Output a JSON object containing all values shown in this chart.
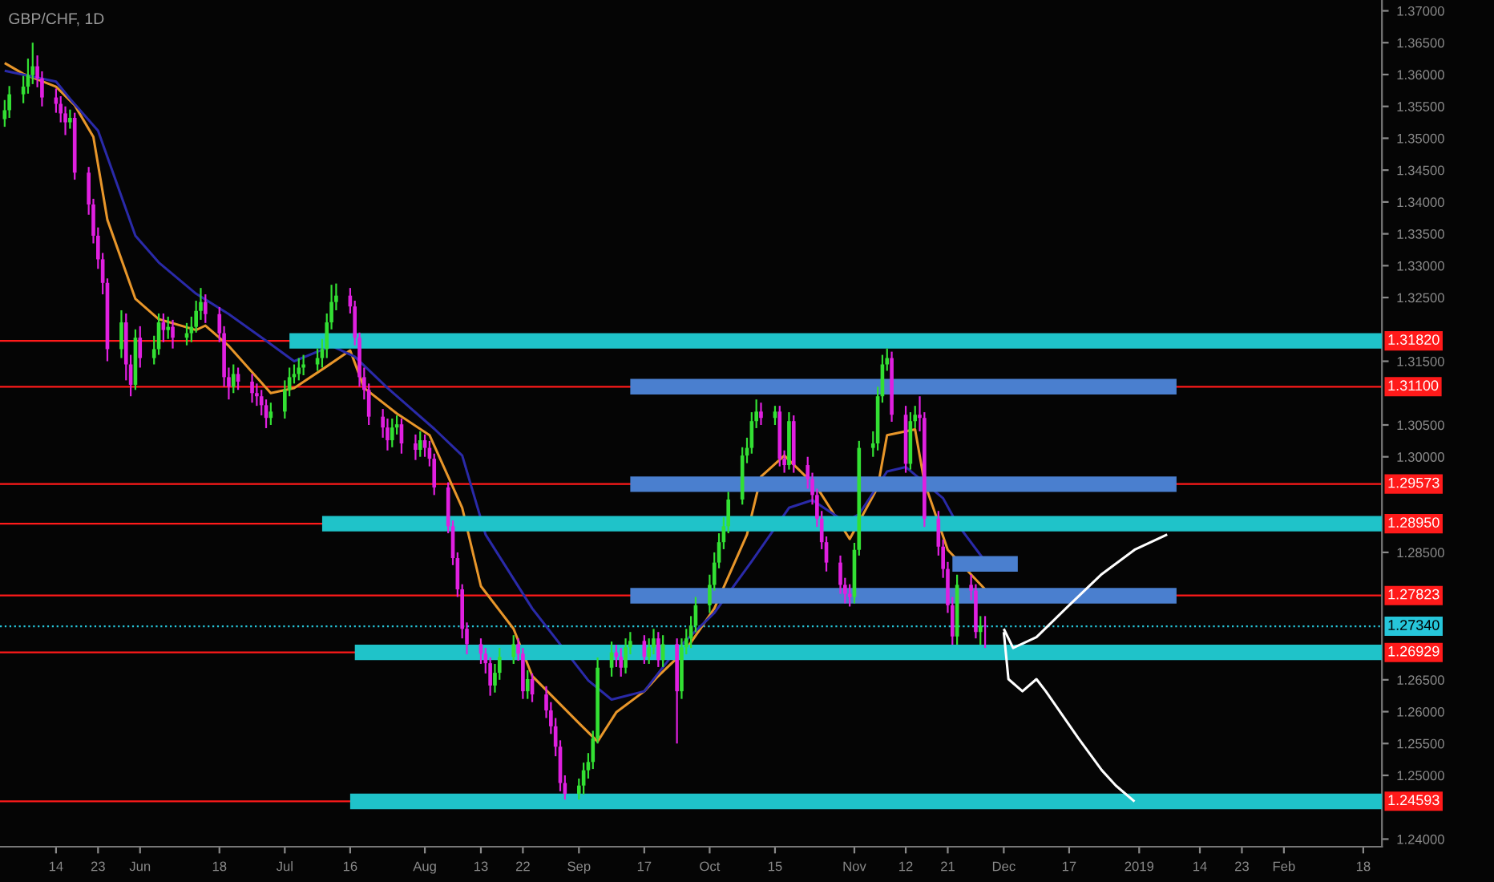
{
  "chart_data": {
    "type": "candlestick",
    "title": "GBP/CHF, 1D",
    "xlim": [
      "2018-05-02",
      "2019-02-22"
    ],
    "xticks": [
      {
        "value": "2018-05-14",
        "label": "14"
      },
      {
        "value": "2018-05-23",
        "label": "23"
      },
      {
        "value": "2018-06-01",
        "label": "Jun"
      },
      {
        "value": "2018-06-18",
        "label": "18"
      },
      {
        "value": "2018-07-02",
        "label": "Jul"
      },
      {
        "value": "2018-07-16",
        "label": "16"
      },
      {
        "value": "2018-08-01",
        "label": "Aug"
      },
      {
        "value": "2018-08-13",
        "label": "13"
      },
      {
        "value": "2018-08-22",
        "label": "22"
      },
      {
        "value": "2018-09-03",
        "label": "Sep"
      },
      {
        "value": "2018-09-17",
        "label": "17"
      },
      {
        "value": "2018-10-01",
        "label": "Oct"
      },
      {
        "value": "2018-10-15",
        "label": "15"
      },
      {
        "value": "2018-11-01",
        "label": "Nov"
      },
      {
        "value": "2018-11-12",
        "label": "12"
      },
      {
        "value": "2018-11-21",
        "label": "21"
      },
      {
        "value": "2018-12-03",
        "label": "Dec"
      },
      {
        "value": "2018-12-17",
        "label": "17"
      },
      {
        "value": "2019-01-01",
        "label": "2019"
      },
      {
        "value": "2019-01-14",
        "label": "14"
      },
      {
        "value": "2019-01-23",
        "label": "23"
      },
      {
        "value": "2019-02-01",
        "label": "Feb"
      },
      {
        "value": "2019-02-18",
        "label": "18"
      }
    ],
    "ylim": [
      1.2388,
      1.3717
    ],
    "yticks": [
      {
        "value": 1.24,
        "label": "1.24000"
      },
      {
        "value": 1.25,
        "label": "1.25000"
      },
      {
        "value": 1.255,
        "label": "1.25500"
      },
      {
        "value": 1.26,
        "label": "1.26000"
      },
      {
        "value": 1.265,
        "label": "1.26500"
      },
      {
        "value": 1.285,
        "label": "1.28500"
      },
      {
        "value": 1.3,
        "label": "1.30000"
      },
      {
        "value": 1.305,
        "label": "1.30500"
      },
      {
        "value": 1.315,
        "label": "1.31500"
      },
      {
        "value": 1.325,
        "label": "1.32500"
      },
      {
        "value": 1.33,
        "label": "1.33000"
      },
      {
        "value": 1.335,
        "label": "1.33500"
      },
      {
        "value": 1.34,
        "label": "1.34000"
      },
      {
        "value": 1.345,
        "label": "1.34500"
      },
      {
        "value": 1.35,
        "label": "1.35000"
      },
      {
        "value": 1.355,
        "label": "1.35500"
      },
      {
        "value": 1.36,
        "label": "1.36000"
      },
      {
        "value": 1.365,
        "label": "1.36500"
      },
      {
        "value": 1.37,
        "label": "1.37000"
      }
    ],
    "ref_lines": [
      {
        "axis": "y",
        "value": 1.3182,
        "label": "1.31820",
        "color": "#ff1a1a"
      },
      {
        "axis": "y",
        "value": 1.311,
        "label": "1.31100",
        "color": "#ff1a1a"
      },
      {
        "axis": "y",
        "value": 1.29573,
        "label": "1.29573",
        "color": "#ff1a1a"
      },
      {
        "axis": "y",
        "value": 1.2895,
        "label": "1.28950",
        "color": "#ff1a1a"
      },
      {
        "axis": "y",
        "value": 1.27823,
        "label": "1.27823",
        "color": "#ff1a1a"
      },
      {
        "axis": "y",
        "value": 1.2734,
        "label": "1.27340",
        "color": "#26c6da",
        "line_style": "dotted"
      },
      {
        "axis": "y",
        "value": 1.26929,
        "label": "1.26929",
        "color": "#ff1a1a"
      },
      {
        "axis": "y",
        "value": 1.24593,
        "label": "1.24593",
        "color": "#ff1a1a"
      }
    ],
    "series": [
      {
        "type": "line",
        "color": "#e8962a",
        "x": [
          "2018-05-03",
          "2018-05-07",
          "2018-05-14",
          "2018-05-18",
          "2018-05-22",
          "2018-05-25",
          "2018-05-31",
          "2018-06-05",
          "2018-06-13",
          "2018-06-15",
          "2018-06-20",
          "2018-06-29",
          "2018-07-04",
          "2018-07-11",
          "2018-07-16",
          "2018-07-19",
          "2018-07-26",
          "2018-08-02",
          "2018-08-09",
          "2018-08-13",
          "2018-08-20",
          "2018-08-24",
          "2018-09-03",
          "2018-09-07",
          "2018-09-11",
          "2018-09-17",
          "2018-09-20",
          "2018-09-26",
          "2018-10-02",
          "2018-10-09",
          "2018-10-12",
          "2018-10-17",
          "2018-10-24",
          "2018-10-31",
          "2018-11-06",
          "2018-11-08",
          "2018-11-14",
          "2018-11-16",
          "2018-11-21",
          "2018-11-29"
        ],
        "values": [
          1.3618,
          1.3601,
          1.3581,
          1.3552,
          1.3502,
          1.3372,
          1.3248,
          1.3216,
          1.3199,
          1.3206,
          1.3174,
          1.31,
          1.3108,
          1.3142,
          1.3167,
          1.3108,
          1.3068,
          1.3034,
          1.292,
          1.2797,
          1.273,
          1.2656,
          1.2582,
          1.2553,
          1.2599,
          1.2632,
          1.2656,
          1.2698,
          1.2762,
          1.2878,
          1.2969,
          1.3002,
          1.2952,
          1.2871,
          1.2952,
          1.3034,
          1.3043,
          1.296,
          1.2854,
          1.2792
        ]
      },
      {
        "type": "line",
        "color": "#2a2aa8",
        "x": [
          "2018-05-03",
          "2018-05-14",
          "2018-05-17",
          "2018-05-23",
          "2018-05-31",
          "2018-06-05",
          "2018-06-13",
          "2018-06-20",
          "2018-06-28",
          "2018-07-04",
          "2018-07-12",
          "2018-07-17",
          "2018-07-24",
          "2018-08-03",
          "2018-08-09",
          "2018-08-14",
          "2018-08-24",
          "2018-09-05",
          "2018-09-10",
          "2018-09-17",
          "2018-09-24",
          "2018-10-02",
          "2018-10-10",
          "2018-10-18",
          "2018-10-23",
          "2018-10-30",
          "2018-11-02",
          "2018-11-08",
          "2018-11-12",
          "2018-11-20",
          "2018-11-23",
          "2018-11-29"
        ],
        "values": [
          1.3606,
          1.3589,
          1.3562,
          1.3512,
          1.3347,
          1.3305,
          1.3256,
          1.3224,
          1.3182,
          1.315,
          1.3174,
          1.3157,
          1.3108,
          1.3044,
          1.3002,
          1.2878,
          1.2762,
          1.2649,
          1.2619,
          1.2632,
          1.2698,
          1.2755,
          1.2836,
          1.292,
          1.2932,
          1.2898,
          1.291,
          1.2977,
          1.2984,
          1.2935,
          1.2895,
          1.2836
        ]
      },
      {
        "x": [
          "2018-05-03",
          "2018-05-04",
          "2018-05-07",
          "2018-05-08",
          "2018-05-09",
          "2018-05-10",
          "2018-05-11",
          "2018-05-14",
          "2018-05-15",
          "2018-05-16",
          "2018-05-17",
          "2018-05-18",
          "2018-05-21",
          "2018-05-22",
          "2018-05-23",
          "2018-05-24",
          "2018-05-25",
          "2018-05-28",
          "2018-05-29",
          "2018-05-30",
          "2018-05-31",
          "2018-06-01",
          "2018-06-04",
          "2018-06-05",
          "2018-06-06",
          "2018-06-07",
          "2018-06-08",
          "2018-06-11",
          "2018-06-12",
          "2018-06-13",
          "2018-06-14",
          "2018-06-15",
          "2018-06-18",
          "2018-06-19",
          "2018-06-20",
          "2018-06-21",
          "2018-06-22",
          "2018-06-25",
          "2018-06-26",
          "2018-06-27",
          "2018-06-28",
          "2018-06-29",
          "2018-07-02",
          "2018-07-03",
          "2018-07-04",
          "2018-07-05",
          "2018-07-06",
          "2018-07-09",
          "2018-07-10",
          "2018-07-11",
          "2018-07-12",
          "2018-07-13",
          "2018-07-16",
          "2018-07-17",
          "2018-07-18",
          "2018-07-19",
          "2018-07-20",
          "2018-07-23",
          "2018-07-24",
          "2018-07-25",
          "2018-07-26",
          "2018-07-27",
          "2018-07-30",
          "2018-07-31",
          "2018-08-01",
          "2018-08-02",
          "2018-08-03",
          "2018-08-06",
          "2018-08-07",
          "2018-08-08",
          "2018-08-09",
          "2018-08-10",
          "2018-08-13",
          "2018-08-14",
          "2018-08-15",
          "2018-08-16",
          "2018-08-17",
          "2018-08-20",
          "2018-08-21",
          "2018-08-22",
          "2018-08-23",
          "2018-08-24",
          "2018-08-27",
          "2018-08-28",
          "2018-08-29",
          "2018-08-30",
          "2018-08-31",
          "2018-09-03",
          "2018-09-04",
          "2018-09-05",
          "2018-09-06",
          "2018-09-07",
          "2018-09-10",
          "2018-09-11",
          "2018-09-12",
          "2018-09-13",
          "2018-09-14",
          "2018-09-17",
          "2018-09-18",
          "2018-09-19",
          "2018-09-20",
          "2018-09-21",
          "2018-09-24",
          "2018-09-25",
          "2018-09-26",
          "2018-09-27",
          "2018-09-28",
          "2018-10-01",
          "2018-10-02",
          "2018-10-03",
          "2018-10-04",
          "2018-10-05",
          "2018-10-08",
          "2018-10-09",
          "2018-10-10",
          "2018-10-11",
          "2018-10-12",
          "2018-10-15",
          "2018-10-16",
          "2018-10-17",
          "2018-10-18",
          "2018-10-19",
          "2018-10-22",
          "2018-10-23",
          "2018-10-24",
          "2018-10-25",
          "2018-10-26",
          "2018-10-29",
          "2018-10-30",
          "2018-10-31",
          "2018-11-01",
          "2018-11-02",
          "2018-11-05",
          "2018-11-06",
          "2018-11-07",
          "2018-11-08",
          "2018-11-09",
          "2018-11-12",
          "2018-11-13",
          "2018-11-14",
          "2018-11-15",
          "2018-11-16",
          "2018-11-19",
          "2018-11-20",
          "2018-11-21",
          "2018-11-22",
          "2018-11-23",
          "2018-11-26",
          "2018-11-27",
          "2018-11-28",
          "2018-11-29"
        ],
        "ohlc": [
          [
            1.353,
            1.356,
            1.3518,
            1.3544
          ],
          [
            1.3544,
            1.3582,
            1.3532,
            1.3569
          ],
          [
            1.3569,
            1.3598,
            1.3555,
            1.3581
          ],
          [
            1.3581,
            1.3625,
            1.357,
            1.3599
          ],
          [
            1.3599,
            1.365,
            1.3585,
            1.3613
          ],
          [
            1.3613,
            1.363,
            1.358,
            1.3594
          ],
          [
            1.3594,
            1.3605,
            1.355,
            1.3564
          ],
          [
            1.3564,
            1.3578,
            1.354,
            1.3554
          ],
          [
            1.3554,
            1.3566,
            1.3525,
            1.3539
          ],
          [
            1.3539,
            1.355,
            1.3505,
            1.3525
          ],
          [
            1.3525,
            1.3545,
            1.3515,
            1.3532
          ],
          [
            1.3532,
            1.354,
            1.3435,
            1.3446
          ],
          [
            1.3446,
            1.3455,
            1.338,
            1.3396
          ],
          [
            1.3396,
            1.3405,
            1.3335,
            1.3347
          ],
          [
            1.3347,
            1.336,
            1.3295,
            1.331
          ],
          [
            1.331,
            1.332,
            1.3255,
            1.3273
          ],
          [
            1.3273,
            1.328,
            1.315,
            1.3169
          ],
          [
            1.3169,
            1.323,
            1.3155,
            1.3211
          ],
          [
            1.3211,
            1.3225,
            1.312,
            1.3145
          ],
          [
            1.3145,
            1.316,
            1.3095,
            1.3113
          ],
          [
            1.3113,
            1.32,
            1.3105,
            1.3187
          ],
          [
            1.3187,
            1.3205,
            1.314,
            1.3155
          ],
          [
            1.3155,
            1.319,
            1.3145,
            1.3169
          ],
          [
            1.3169,
            1.3225,
            1.316,
            1.3211
          ],
          [
            1.3211,
            1.3225,
            1.318,
            1.3199
          ],
          [
            1.3199,
            1.322,
            1.3185,
            1.3204
          ],
          [
            1.3204,
            1.3215,
            1.317,
            1.3187
          ],
          [
            1.3187,
            1.321,
            1.3175,
            1.3194
          ],
          [
            1.3194,
            1.322,
            1.318,
            1.3204
          ],
          [
            1.3204,
            1.3245,
            1.3195,
            1.3229
          ],
          [
            1.3229,
            1.3265,
            1.3215,
            1.3243
          ],
          [
            1.3243,
            1.3255,
            1.321,
            1.3224
          ],
          [
            1.3224,
            1.3235,
            1.318,
            1.3194
          ],
          [
            1.3194,
            1.3205,
            1.311,
            1.3125
          ],
          [
            1.3125,
            1.314,
            1.309,
            1.311
          ],
          [
            1.311,
            1.3145,
            1.31,
            1.313
          ],
          [
            1.313,
            1.314,
            1.3105,
            1.3118
          ],
          [
            1.3118,
            1.313,
            1.3085,
            1.31
          ],
          [
            1.31,
            1.3115,
            1.308,
            1.3095
          ],
          [
            1.3095,
            1.3105,
            1.3065,
            1.3081
          ],
          [
            1.3081,
            1.309,
            1.3045,
            1.3061
          ],
          [
            1.3061,
            1.3085,
            1.305,
            1.3071
          ],
          [
            1.3071,
            1.312,
            1.306,
            1.3105
          ],
          [
            1.3105,
            1.314,
            1.3095,
            1.3125
          ],
          [
            1.3125,
            1.3145,
            1.3115,
            1.313
          ],
          [
            1.313,
            1.3155,
            1.312,
            1.314
          ],
          [
            1.314,
            1.316,
            1.3128,
            1.3145
          ],
          [
            1.3145,
            1.317,
            1.3135,
            1.3155
          ],
          [
            1.3155,
            1.3185,
            1.314,
            1.3169
          ],
          [
            1.3169,
            1.3225,
            1.3155,
            1.3211
          ],
          [
            1.3211,
            1.327,
            1.32,
            1.3243
          ],
          [
            1.3243,
            1.3272,
            1.323,
            1.3253
          ],
          [
            1.3253,
            1.3265,
            1.3225,
            1.3236
          ],
          [
            1.3236,
            1.3245,
            1.3175,
            1.3187
          ],
          [
            1.3187,
            1.3195,
            1.311,
            1.3125
          ],
          [
            1.3125,
            1.314,
            1.309,
            1.3105
          ],
          [
            1.3105,
            1.3115,
            1.305,
            1.3063
          ],
          [
            1.3063,
            1.3075,
            1.303,
            1.3046
          ],
          [
            1.3046,
            1.306,
            1.301,
            1.3026
          ],
          [
            1.3026,
            1.306,
            1.3015,
            1.3046
          ],
          [
            1.3046,
            1.3065,
            1.3035,
            1.3051
          ],
          [
            1.3051,
            1.306,
            1.3005,
            1.3021
          ],
          [
            1.3021,
            1.3035,
            1.2995,
            1.3011
          ],
          [
            1.3011,
            1.304,
            1.3,
            1.3026
          ],
          [
            1.3026,
            1.3035,
            1.3,
            1.3014
          ],
          [
            1.3014,
            1.3025,
            1.2985,
            1.2997
          ],
          [
            1.2997,
            1.3005,
            1.294,
            1.2952
          ],
          [
            1.2952,
            1.296,
            1.288,
            1.2891
          ],
          [
            1.2891,
            1.29,
            1.283,
            1.2841
          ],
          [
            1.2841,
            1.285,
            1.278,
            1.2792
          ],
          [
            1.2792,
            1.28,
            1.2715,
            1.273
          ],
          [
            1.273,
            1.274,
            1.269,
            1.2706
          ],
          [
            1.2706,
            1.2715,
            1.2675,
            1.2691
          ],
          [
            1.2691,
            1.27,
            1.266,
            1.2676
          ],
          [
            1.2676,
            1.2685,
            1.2625,
            1.2641
          ],
          [
            1.2641,
            1.2675,
            1.263,
            1.2661
          ],
          [
            1.2661,
            1.27,
            1.265,
            1.2686
          ],
          [
            1.2686,
            1.272,
            1.2675,
            1.2706
          ],
          [
            1.2706,
            1.2715,
            1.268,
            1.2691
          ],
          [
            1.2691,
            1.27,
            1.262,
            1.2632
          ],
          [
            1.2632,
            1.2665,
            1.262,
            1.2651
          ],
          [
            1.2651,
            1.266,
            1.2615,
            1.2627
          ],
          [
            1.2627,
            1.264,
            1.259,
            1.2602
          ],
          [
            1.2602,
            1.2615,
            1.2565,
            1.2577
          ],
          [
            1.2577,
            1.259,
            1.253,
            1.2545
          ],
          [
            1.2545,
            1.2555,
            1.2475,
            1.2488
          ],
          [
            1.2488,
            1.25,
            1.2462,
            1.2471
          ],
          [
            1.2471,
            1.2495,
            1.2462,
            1.2484
          ],
          [
            1.2484,
            1.252,
            1.247,
            1.2508
          ],
          [
            1.2508,
            1.2535,
            1.2495,
            1.2521
          ],
          [
            1.2521,
            1.257,
            1.251,
            1.2558
          ],
          [
            1.2558,
            1.2685,
            1.255,
            1.2669
          ],
          [
            1.2669,
            1.271,
            1.2655,
            1.2693
          ],
          [
            1.2693,
            1.2705,
            1.267,
            1.2686
          ],
          [
            1.2686,
            1.27,
            1.2655,
            1.2669
          ],
          [
            1.2669,
            1.2715,
            1.266,
            1.2701
          ],
          [
            1.2701,
            1.2725,
            1.269,
            1.2711
          ],
          [
            1.2711,
            1.272,
            1.2675,
            1.2686
          ],
          [
            1.2686,
            1.2715,
            1.2675,
            1.2701
          ],
          [
            1.2701,
            1.273,
            1.269,
            1.2715
          ],
          [
            1.2715,
            1.2725,
            1.267,
            1.2681
          ],
          [
            1.2681,
            1.272,
            1.267,
            1.2706
          ],
          [
            1.2706,
            1.2715,
            1.255,
            1.2632
          ],
          [
            1.2632,
            1.2715,
            1.262,
            1.2701
          ],
          [
            1.2701,
            1.273,
            1.269,
            1.2715
          ],
          [
            1.2715,
            1.275,
            1.27,
            1.2735
          ],
          [
            1.2735,
            1.278,
            1.2725,
            1.2767
          ],
          [
            1.2767,
            1.2815,
            1.2755,
            1.2799
          ],
          [
            1.2799,
            1.285,
            1.279,
            1.2834
          ],
          [
            1.2834,
            1.288,
            1.2825,
            1.2866
          ],
          [
            1.2866,
            1.2905,
            1.2855,
            1.2891
          ],
          [
            1.2891,
            1.2945,
            1.288,
            1.2933
          ],
          [
            1.2933,
            1.3015,
            1.2925,
            1.3002
          ],
          [
            1.3002,
            1.303,
            1.299,
            1.3014
          ],
          [
            1.3014,
            1.307,
            1.3005,
            1.3056
          ],
          [
            1.3056,
            1.309,
            1.3045,
            1.3071
          ],
          [
            1.3071,
            1.3085,
            1.305,
            1.3061
          ],
          [
            1.3061,
            1.308,
            1.305,
            1.3071
          ],
          [
            1.3071,
            1.308,
            1.2985,
            1.2997
          ],
          [
            1.2997,
            1.301,
            1.2975,
            1.2987
          ],
          [
            1.2987,
            1.307,
            1.298,
            1.3056
          ],
          [
            1.3056,
            1.3065,
            1.2975,
            1.2987
          ],
          [
            1.2987,
            1.3,
            1.295,
            1.2965
          ],
          [
            1.2965,
            1.2975,
            1.2925,
            1.294
          ],
          [
            1.294,
            1.295,
            1.289,
            1.2903
          ],
          [
            1.2903,
            1.2915,
            1.2855,
            1.2866
          ],
          [
            1.2866,
            1.2875,
            1.282,
            1.2834
          ],
          [
            1.2834,
            1.2845,
            1.2785,
            1.2799
          ],
          [
            1.2799,
            1.281,
            1.277,
            1.2785
          ],
          [
            1.2785,
            1.28,
            1.2765,
            1.278
          ],
          [
            1.278,
            1.2865,
            1.277,
            1.2854
          ],
          [
            1.2854,
            1.3025,
            1.2845,
            1.3014
          ],
          [
            1.3014,
            1.304,
            1.3,
            1.3021
          ],
          [
            1.3021,
            1.311,
            1.301,
            1.3095
          ],
          [
            1.3095,
            1.316,
            1.3085,
            1.3145
          ],
          [
            1.3145,
            1.317,
            1.3135,
            1.3155
          ],
          [
            1.3155,
            1.3165,
            1.3055,
            1.3066
          ],
          [
            1.3066,
            1.308,
            1.2975,
            1.2989
          ],
          [
            1.2989,
            1.307,
            1.298,
            1.3056
          ],
          [
            1.3056,
            1.308,
            1.3045,
            1.3066
          ],
          [
            1.3066,
            1.3095,
            1.304,
            1.3061
          ],
          [
            1.3061,
            1.307,
            1.289,
            1.2903
          ],
          [
            1.2903,
            1.2915,
            1.2845,
            1.2859
          ],
          [
            1.2859,
            1.287,
            1.281,
            1.2824
          ],
          [
            1.2824,
            1.2835,
            1.2755,
            1.2767
          ],
          [
            1.2767,
            1.278,
            1.2705,
            1.2718
          ],
          [
            1.2718,
            1.2815,
            1.2705,
            1.2799
          ],
          [
            1.2799,
            1.2815,
            1.2775,
            1.279
          ],
          [
            1.279,
            1.28,
            1.2715,
            1.2725
          ],
          [
            1.2725,
            1.275,
            1.2705,
            1.2735
          ],
          [
            1.2735,
            1.275,
            1.27,
            1.2734
          ]
        ]
      },
      {
        "type": "line",
        "color": "#1fc3c9",
        "x": [
          "2018-07-03",
          "2019-02-22"
        ],
        "values": [
          1.3182,
          1.3182
        ]
      },
      {
        "type": "line",
        "color": "#4a7fcf",
        "x": [
          "2018-09-14",
          "2019-01-09"
        ],
        "values": [
          1.311,
          1.311
        ]
      },
      {
        "type": "line",
        "color": "#4a7fcf",
        "x": [
          "2018-09-14",
          "2019-01-09"
        ],
        "values": [
          1.2957,
          1.2957
        ]
      },
      {
        "type": "line",
        "color": "#1fc3c9",
        "x": [
          "2018-07-10",
          "2019-02-22"
        ],
        "values": [
          1.2895,
          1.2895
        ]
      },
      {
        "type": "line",
        "color": "#4a7fcf",
        "x": [
          "2018-09-14",
          "2019-01-09"
        ],
        "values": [
          1.2782,
          1.2782
        ]
      },
      {
        "type": "line",
        "color": "#4a7fcf",
        "x": [
          "2018-11-22",
          "2018-12-06"
        ],
        "values": [
          1.2832,
          1.2832
        ]
      },
      {
        "type": "line",
        "color": "#1fc3c9",
        "x": [
          "2018-07-17",
          "2019-02-22"
        ],
        "values": [
          1.2693,
          1.2693
        ]
      },
      {
        "type": "line",
        "color": "#1fc3c9",
        "x": [
          "2018-07-16",
          "2019-02-22"
        ],
        "values": [
          1.2459,
          1.2459
        ]
      },
      {
        "type": "line",
        "color": "#ffffff",
        "x": [
          "2018-12-03",
          "2018-12-05",
          "2018-12-10",
          "2018-12-17",
          "2018-12-24",
          "2018-12-31",
          "2019-01-07"
        ],
        "values": [
          1.273,
          1.27,
          1.2717,
          1.2767,
          1.2816,
          1.2854,
          1.2878
        ]
      },
      {
        "type": "line",
        "color": "#ffffff",
        "x": [
          "2018-12-03",
          "2018-12-04",
          "2018-12-07",
          "2018-12-10",
          "2018-12-12",
          "2018-12-19",
          "2018-12-24",
          "2018-12-27",
          "2018-12-31"
        ],
        "values": [
          1.2725,
          1.2651,
          1.2632,
          1.2651,
          1.2632,
          1.2558,
          1.2508,
          1.2484,
          1.2459
        ]
      }
    ]
  }
}
